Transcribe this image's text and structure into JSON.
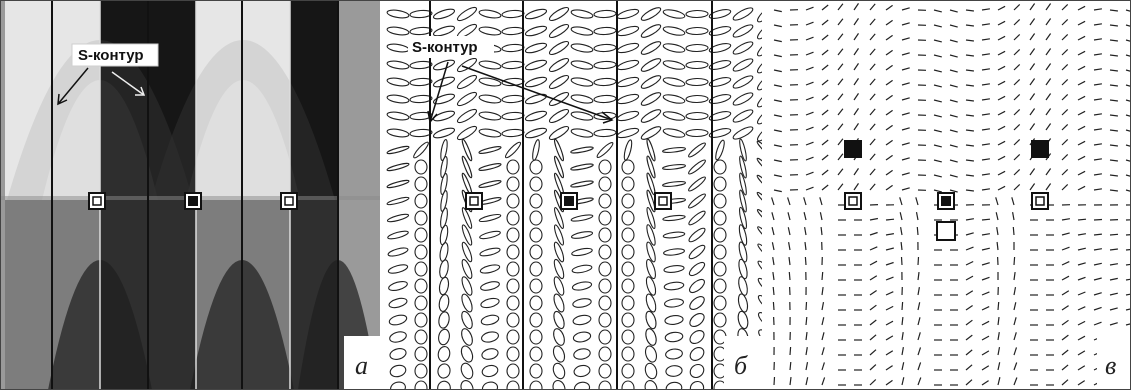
{
  "figure": {
    "panels": [
      {
        "id": "a",
        "letter": "а",
        "callout": "S-контур"
      },
      {
        "id": "b",
        "letter": "б",
        "callout": "S-контур"
      },
      {
        "id": "c",
        "letter": "в"
      }
    ],
    "colors": {
      "bright": "#e6e6e6",
      "light_gray": "#c4c4c4",
      "mid_gray": "#9b9b9b",
      "dark_gray": "#6d6d6d",
      "darkest": "#1b1b1b",
      "line": "#111111"
    }
  }
}
